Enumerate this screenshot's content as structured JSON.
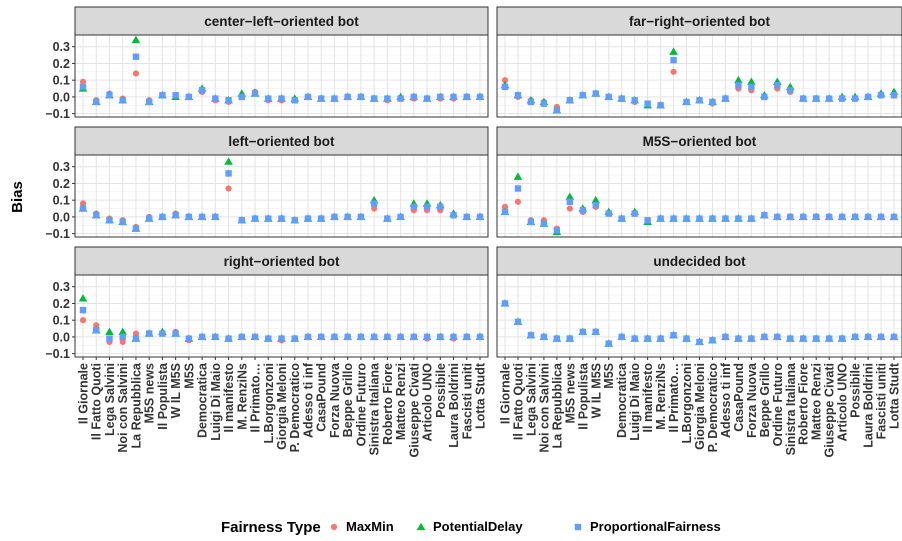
{
  "chart_data": {
    "type": "scatter",
    "ylabel": "Bias",
    "ylim": [
      -0.12,
      0.37
    ],
    "yticks": [
      -0.1,
      0.0,
      0.1,
      0.2,
      0.3
    ],
    "ytick_labels": [
      "−0.1",
      "0.0",
      "0.1",
      "0.2",
      "0.3"
    ],
    "grid": true,
    "legend": {
      "title": "Fairness Type",
      "position": "bottom",
      "entries": [
        {
          "name": "MaxMin",
          "color": "#F8766D",
          "shape": "circle"
        },
        {
          "name": "PotentialDelay",
          "color": "#00BA38",
          "shape": "triangle"
        },
        {
          "name": "ProportionalFairness",
          "color": "#619CFF",
          "shape": "square"
        }
      ]
    },
    "categories": [
      "Il Giornale",
      "Il Fatto Quoti",
      "Lega Salvini",
      "Noi con Salvini",
      "La Repubblica",
      "M5S news",
      "Il Populista",
      "W IL M5S",
      "M5S",
      "Democratica",
      "Luigi Di Maio",
      "Il manifesto",
      "M. RenziNs",
      "Il Primato…",
      "L.Borgonzoni",
      "Giorgia Meloni",
      "P. Democratico",
      "Adesso ti inf",
      "CasaPound",
      "Forza Nuova",
      "Beppe Grillo",
      "Ordine Futuro",
      "Sinistra Italiana",
      "Roberto Fiore",
      "Matteo Renzi",
      "Giuseppe Civati",
      "Articolo UNO",
      "Possibile",
      "Laura Boldrini",
      "Fascisti uniti",
      "Lotta Studt"
    ],
    "panels": [
      {
        "title": "center−left−oriented bot",
        "series": [
          {
            "name": "MaxMin",
            "values": [
              0.09,
              -0.02,
              0.02,
              -0.01,
              0.14,
              -0.02,
              0.01,
              0.01,
              0.0,
              0.03,
              -0.02,
              -0.03,
              0.0,
              0.03,
              -0.02,
              -0.02,
              -0.02,
              0.0,
              -0.01,
              -0.01,
              0.0,
              0.0,
              -0.01,
              -0.02,
              -0.01,
              -0.01,
              -0.01,
              -0.01,
              -0.01,
              0.0,
              0.0
            ]
          },
          {
            "name": "PotentialDelay",
            "values": [
              0.05,
              -0.03,
              0.01,
              -0.02,
              0.34,
              -0.03,
              0.01,
              0.0,
              0.0,
              0.05,
              -0.01,
              -0.02,
              0.02,
              0.02,
              -0.01,
              -0.01,
              -0.01,
              0.0,
              -0.01,
              -0.01,
              0.0,
              0.0,
              -0.01,
              -0.01,
              0.0,
              0.0,
              -0.01,
              0.0,
              0.0,
              0.0,
              0.0
            ]
          },
          {
            "name": "ProportionalFairness",
            "values": [
              0.06,
              -0.03,
              0.01,
              -0.02,
              0.24,
              -0.03,
              0.01,
              0.01,
              0.0,
              0.04,
              -0.01,
              -0.02,
              0.0,
              0.02,
              -0.01,
              -0.01,
              -0.02,
              0.0,
              -0.01,
              -0.01,
              0.0,
              0.0,
              -0.01,
              -0.01,
              -0.01,
              0.0,
              -0.01,
              0.0,
              0.0,
              0.0,
              0.0
            ]
          }
        ]
      },
      {
        "title": "far−right−oriented bot",
        "series": [
          {
            "name": "MaxMin",
            "values": [
              0.1,
              0.0,
              -0.02,
              -0.03,
              -0.06,
              -0.02,
              0.01,
              0.02,
              0.0,
              -0.01,
              -0.03,
              -0.04,
              -0.05,
              0.15,
              -0.03,
              -0.02,
              -0.04,
              -0.01,
              0.05,
              0.04,
              0.0,
              0.05,
              0.03,
              -0.01,
              -0.01,
              -0.01,
              -0.01,
              -0.01,
              0.0,
              0.01,
              0.01
            ]
          },
          {
            "name": "PotentialDelay",
            "values": [
              0.07,
              0.01,
              -0.02,
              -0.03,
              -0.08,
              -0.02,
              0.01,
              0.02,
              0.0,
              -0.01,
              -0.02,
              -0.05,
              -0.05,
              0.27,
              -0.03,
              -0.02,
              -0.03,
              -0.01,
              0.1,
              0.09,
              0.01,
              0.09,
              0.06,
              -0.01,
              -0.01,
              -0.01,
              0.0,
              0.0,
              0.0,
              0.02,
              0.03
            ]
          },
          {
            "name": "ProportionalFairness",
            "values": [
              0.06,
              0.01,
              -0.03,
              -0.04,
              -0.08,
              -0.02,
              0.01,
              0.02,
              0.0,
              -0.01,
              -0.02,
              -0.04,
              -0.05,
              0.22,
              -0.03,
              -0.02,
              -0.03,
              -0.01,
              0.07,
              0.06,
              0.0,
              0.07,
              0.04,
              -0.01,
              -0.01,
              -0.01,
              -0.01,
              -0.01,
              0.0,
              0.01,
              0.01
            ]
          }
        ]
      },
      {
        "title": "left−oriented bot",
        "series": [
          {
            "name": "MaxMin",
            "values": [
              0.08,
              0.02,
              -0.01,
              -0.02,
              -0.06,
              0.0,
              0.0,
              0.02,
              0.0,
              0.0,
              0.0,
              0.17,
              -0.02,
              -0.01,
              -0.01,
              -0.01,
              -0.02,
              -0.01,
              -0.01,
              0.0,
              0.0,
              0.0,
              0.05,
              -0.01,
              0.0,
              0.04,
              0.04,
              0.04,
              0.01,
              0.0,
              0.0
            ]
          },
          {
            "name": "PotentialDelay",
            "values": [
              0.05,
              0.01,
              -0.02,
              -0.03,
              -0.07,
              -0.01,
              0.0,
              0.01,
              0.0,
              0.0,
              0.0,
              0.33,
              -0.02,
              -0.01,
              -0.01,
              -0.01,
              -0.02,
              -0.01,
              -0.01,
              0.0,
              0.0,
              0.0,
              0.1,
              -0.01,
              0.0,
              0.08,
              0.08,
              0.07,
              0.02,
              0.0,
              0.0
            ]
          },
          {
            "name": "ProportionalFairness",
            "values": [
              0.05,
              0.01,
              -0.02,
              -0.03,
              -0.07,
              -0.01,
              0.0,
              0.01,
              0.0,
              0.0,
              0.0,
              0.26,
              -0.02,
              -0.01,
              -0.01,
              -0.01,
              -0.02,
              -0.01,
              -0.01,
              0.0,
              0.0,
              0.0,
              0.08,
              -0.01,
              0.0,
              0.06,
              0.06,
              0.06,
              0.01,
              0.0,
              0.0
            ]
          }
        ]
      },
      {
        "title": "M5S−oriented bot",
        "series": [
          {
            "name": "MaxMin",
            "values": [
              0.06,
              0.09,
              -0.02,
              -0.02,
              -0.07,
              0.05,
              0.03,
              0.06,
              0.02,
              -0.01,
              0.02,
              -0.02,
              -0.01,
              -0.01,
              -0.01,
              -0.01,
              -0.01,
              -0.01,
              -0.01,
              -0.01,
              0.01,
              0.0,
              0.0,
              0.0,
              0.0,
              0.0,
              0.0,
              0.0,
              0.0,
              0.0,
              0.0
            ]
          },
          {
            "name": "PotentialDelay",
            "values": [
              0.03,
              0.24,
              -0.03,
              -0.04,
              -0.09,
              0.12,
              0.05,
              0.1,
              0.03,
              -0.01,
              0.03,
              -0.03,
              -0.01,
              -0.01,
              -0.01,
              -0.01,
              -0.01,
              -0.01,
              -0.01,
              -0.01,
              0.01,
              0.0,
              0.0,
              0.0,
              0.0,
              0.0,
              0.0,
              0.0,
              0.0,
              0.0,
              0.0
            ]
          },
          {
            "name": "ProportionalFairness",
            "values": [
              0.03,
              0.17,
              -0.03,
              -0.04,
              -0.08,
              0.09,
              0.04,
              0.07,
              0.02,
              -0.01,
              0.02,
              -0.02,
              -0.01,
              -0.01,
              -0.01,
              -0.01,
              -0.01,
              -0.01,
              -0.01,
              -0.01,
              0.01,
              0.0,
              0.0,
              0.0,
              0.0,
              0.0,
              0.0,
              0.0,
              0.0,
              0.0,
              0.0
            ]
          }
        ]
      },
      {
        "title": "right−oriented bot",
        "series": [
          {
            "name": "MaxMin",
            "values": [
              0.1,
              0.07,
              -0.03,
              -0.03,
              0.02,
              0.02,
              0.02,
              0.03,
              -0.02,
              0.0,
              0.0,
              -0.01,
              0.0,
              0.0,
              -0.01,
              -0.02,
              -0.01,
              0.0,
              0.0,
              0.0,
              0.0,
              0.0,
              0.0,
              0.0,
              0.0,
              0.0,
              -0.01,
              0.0,
              -0.01,
              0.0,
              0.0
            ]
          },
          {
            "name": "PotentialDelay",
            "values": [
              0.23,
              0.04,
              0.03,
              0.03,
              -0.01,
              0.02,
              0.03,
              0.02,
              -0.01,
              0.0,
              0.0,
              -0.01,
              0.0,
              0.0,
              -0.01,
              -0.01,
              -0.01,
              0.0,
              0.0,
              0.0,
              0.0,
              0.0,
              0.0,
              0.0,
              0.0,
              0.0,
              0.0,
              0.0,
              0.0,
              0.0,
              0.0
            ]
          },
          {
            "name": "ProportionalFairness",
            "values": [
              0.16,
              0.04,
              -0.01,
              0.0,
              -0.01,
              0.02,
              0.02,
              0.02,
              -0.01,
              0.0,
              0.0,
              -0.01,
              0.0,
              0.0,
              -0.01,
              -0.01,
              -0.01,
              0.0,
              0.0,
              0.0,
              0.0,
              0.0,
              0.0,
              0.0,
              0.0,
              0.0,
              0.0,
              0.0,
              0.0,
              0.0,
              0.0
            ]
          }
        ]
      },
      {
        "title": "undecided bot",
        "series": [
          {
            "name": "MaxMin",
            "values": [
              0.2,
              0.09,
              0.01,
              0.0,
              -0.01,
              -0.01,
              0.03,
              0.03,
              -0.04,
              0.0,
              -0.01,
              -0.01,
              -0.01,
              0.01,
              -0.01,
              -0.03,
              -0.02,
              0.0,
              -0.01,
              -0.01,
              0.0,
              0.0,
              -0.01,
              -0.01,
              -0.01,
              -0.01,
              -0.01,
              0.0,
              0.0,
              0.0,
              0.0
            ]
          },
          {
            "name": "PotentialDelay",
            "values": [
              0.2,
              0.09,
              0.01,
              0.0,
              -0.01,
              -0.01,
              0.03,
              0.03,
              -0.04,
              0.0,
              -0.01,
              -0.01,
              -0.01,
              0.01,
              -0.01,
              -0.03,
              -0.02,
              0.0,
              -0.01,
              -0.01,
              0.0,
              0.0,
              -0.01,
              -0.01,
              -0.01,
              -0.01,
              -0.01,
              0.0,
              0.0,
              0.0,
              0.0
            ]
          },
          {
            "name": "ProportionalFairness",
            "values": [
              0.2,
              0.09,
              0.01,
              0.0,
              -0.01,
              -0.01,
              0.03,
              0.03,
              -0.04,
              0.0,
              -0.01,
              -0.01,
              -0.01,
              0.01,
              -0.01,
              -0.03,
              -0.02,
              0.0,
              -0.01,
              -0.01,
              0.0,
              0.0,
              -0.01,
              -0.01,
              -0.01,
              -0.01,
              -0.01,
              0.0,
              0.0,
              0.0,
              0.0
            ]
          }
        ]
      }
    ]
  }
}
